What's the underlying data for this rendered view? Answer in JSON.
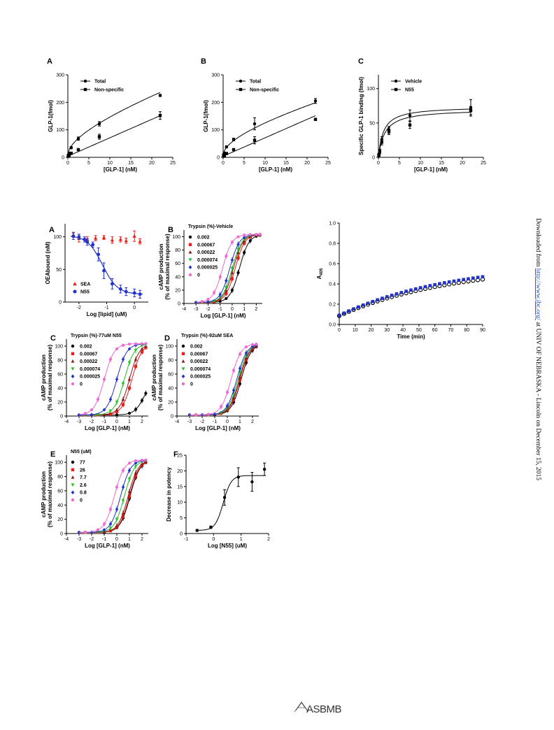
{
  "watermark": {
    "prefix": "Downloaded from ",
    "link": "http://www.jbc.org/",
    "suffix": " at UNIV OF NEBRASKA - Lincoln on December 15, 2015"
  },
  "footer": {
    "logo_text": "ASBMB"
  },
  "chart_data": [
    {
      "id": "top_A",
      "panel_label": "A",
      "type": "scatter",
      "xlabel": "[GLP-1] (nM)",
      "ylabel": "GLP-1(fmol)",
      "xlim": [
        0,
        25
      ],
      "ylim": [
        0,
        300
      ],
      "xticks": [
        0,
        5,
        10,
        15,
        20,
        25
      ],
      "yticks": [
        0,
        100,
        200,
        300
      ],
      "legend_position": "top-left",
      "series": [
        {
          "name": "Total",
          "marker": "circle",
          "color": "#000000",
          "x": [
            0.1,
            0.3,
            0.8,
            2.5,
            7.5,
            22
          ],
          "y": [
            8,
            14,
            35,
            68,
            122,
            225
          ],
          "err": [
            3,
            3,
            4,
            6,
            8,
            4
          ]
        },
        {
          "name": "Non-specific",
          "marker": "square",
          "color": "#000000",
          "x": [
            0.1,
            0.3,
            0.8,
            2.5,
            7.5,
            22
          ],
          "y": [
            4,
            7,
            15,
            28,
            75,
            152
          ],
          "err": [
            2,
            2,
            3,
            4,
            9,
            14
          ]
        }
      ]
    },
    {
      "id": "top_B",
      "panel_label": "B",
      "type": "scatter",
      "xlabel": "[GLP-1] (nM)",
      "ylabel": "GLP-1(fmol)",
      "xlim": [
        0,
        25
      ],
      "ylim": [
        0,
        300
      ],
      "xticks": [
        0,
        5,
        10,
        15,
        20,
        25
      ],
      "yticks": [
        0,
        100,
        200,
        300
      ],
      "legend_position": "top-left",
      "series": [
        {
          "name": "Total",
          "marker": "circle",
          "color": "#000000",
          "x": [
            0.1,
            0.3,
            0.8,
            2.5,
            7.5,
            22
          ],
          "y": [
            10,
            16,
            38,
            65,
            122,
            205
          ],
          "err": [
            3,
            3,
            4,
            5,
            22,
            9
          ]
        },
        {
          "name": "Non-specific",
          "marker": "square",
          "color": "#000000",
          "x": [
            0.1,
            0.3,
            0.8,
            2.5,
            7.5,
            22
          ],
          "y": [
            4,
            7,
            14,
            28,
            62,
            138
          ],
          "err": [
            2,
            2,
            3,
            4,
            13,
            4
          ]
        }
      ]
    },
    {
      "id": "top_C",
      "panel_label": "C",
      "type": "scatter",
      "xlabel": "[GLP-1] (nM)",
      "ylabel": "Specific GLP-1 binding (fmol)",
      "xlim": [
        0,
        25
      ],
      "ylim": [
        0,
        120
      ],
      "xticks": [
        0,
        5,
        10,
        15,
        20,
        25
      ],
      "yticks": [
        0,
        50,
        100
      ],
      "legend_position": "top-left",
      "series": [
        {
          "name": "Vehicle",
          "marker": "circle",
          "color": "#000000",
          "x": [
            0.1,
            0.3,
            0.8,
            2.5,
            7.5,
            22
          ],
          "y": [
            4,
            8,
            26,
            40,
            61,
            72
          ],
          "err": [
            2,
            3,
            4,
            5,
            8,
            12
          ]
        },
        {
          "name": "N55",
          "marker": "square",
          "color": "#000000",
          "x": [
            0.1,
            0.3,
            0.8,
            2.5,
            7.5,
            22
          ],
          "y": [
            3,
            9,
            22,
            38,
            47,
            68
          ],
          "err": [
            2,
            3,
            4,
            5,
            5,
            6
          ]
        }
      ]
    },
    {
      "id": "mid_A",
      "panel_label": "A",
      "type": "scatter",
      "xlabel": "Log [lipid] (uM)",
      "ylabel": "OEAbound (nM)",
      "xlim": [
        -2.5,
        0.5
      ],
      "ylim": [
        0,
        120
      ],
      "xticks": [
        -2,
        -1,
        0
      ],
      "yticks": [
        0,
        50,
        100
      ],
      "legend_position": "bottom-left",
      "series": [
        {
          "name": "SEA",
          "marker": "triangle",
          "color": "#e8201c",
          "x": [
            -2.2,
            -2.0,
            -1.7,
            -1.4,
            -1.1,
            -0.8,
            -0.5,
            -0.3,
            0.0,
            0.2
          ],
          "y": [
            103,
            98,
            96,
            98,
            99,
            95,
            96,
            94,
            101,
            93
          ],
          "err": [
            4,
            6,
            4,
            4,
            3,
            5,
            4,
            4,
            8,
            4
          ]
        },
        {
          "name": "N55",
          "marker": "circle",
          "color": "#2231c8",
          "x": [
            -2.2,
            -2.0,
            -1.8,
            -1.7,
            -1.5,
            -1.3,
            -1.1,
            -0.8,
            -0.5,
            -0.3,
            0.0,
            0.2
          ],
          "y": [
            101,
            100,
            96,
            92,
            88,
            73,
            48,
            28,
            20,
            16,
            14,
            12
          ],
          "err": [
            5,
            4,
            4,
            5,
            4,
            10,
            12,
            8,
            6,
            6,
            6,
            6
          ]
        }
      ]
    },
    {
      "id": "mid_B",
      "panel_label": "B",
      "panel_title": "Trypsin (%)-Vehicle",
      "type": "scatter",
      "xlabel": "Log [GLP-1] (nM)",
      "ylabel": "cAMP production\n(% of maximal response)",
      "xlim": [
        -4,
        2.5
      ],
      "ylim": [
        0,
        110
      ],
      "xticks": [
        -4,
        -3,
        -2,
        -1,
        0,
        1,
        2
      ],
      "yticks": [
        0,
        20,
        40,
        60,
        80,
        100
      ],
      "legend_position": "top-left",
      "series": [
        {
          "name": "0.002",
          "marker": "circle",
          "color": "#000000",
          "ec50": 0.6
        },
        {
          "name": "0.00067",
          "marker": "square",
          "color": "#e8201c",
          "ec50": 0.25
        },
        {
          "name": "0.00022",
          "marker": "triangle",
          "color": "#8b1a1a",
          "ec50": 0.1
        },
        {
          "name": "0.000074",
          "marker": "triangle-down",
          "color": "#22c022",
          "ec50": 0.0
        },
        {
          "name": "0.000025",
          "marker": "diamond",
          "color": "#2231c8",
          "ec50": -0.2
        },
        {
          "name": "0",
          "marker": "circle",
          "color": "#f06ad0",
          "ec50": -0.8
        }
      ]
    },
    {
      "id": "mid_right",
      "panel_label": "",
      "type": "scatter",
      "xlabel": "Time (min)",
      "ylabel": "A405",
      "xlim": [
        0,
        90
      ],
      "ylim": [
        0,
        1.0
      ],
      "xticks": [
        0,
        10,
        20,
        30,
        40,
        50,
        60,
        70,
        80,
        90
      ],
      "yticks": [
        0.0,
        0.2,
        0.4,
        0.6,
        0.8,
        1.0
      ],
      "series": [
        {
          "marker": "circle-open",
          "color": "#000000",
          "y0": 0.085,
          "y90": 0.445
        },
        {
          "marker": "square",
          "color": "#2231c8",
          "y0": 0.09,
          "y90": 0.47
        }
      ]
    },
    {
      "id": "low_C",
      "panel_label": "C",
      "panel_title": "Trypsin (%)-77uM N55",
      "type": "scatter",
      "xlabel": "Log [GLP-1] (nM)",
      "ylabel": "cAMP production\n(% of maximal response)",
      "xlim": [
        -4,
        2.5
      ],
      "ylim": [
        0,
        110
      ],
      "xticks": [
        -4,
        -3,
        -2,
        -1,
        0,
        1,
        2
      ],
      "yticks": [
        0,
        20,
        40,
        60,
        80,
        100
      ],
      "legend_position": "top-left",
      "series": [
        {
          "name": "0.002",
          "marker": "circle",
          "color": "#000000",
          "ec50": 2.2,
          "top": 55
        },
        {
          "name": "0.00067",
          "marker": "square",
          "color": "#e8201c",
          "ec50": 1.2
        },
        {
          "name": "0.00022",
          "marker": "triangle",
          "color": "#8b1a1a",
          "ec50": 1.0
        },
        {
          "name": "0.000074",
          "marker": "triangle-down",
          "color": "#22c022",
          "ec50": 0.6
        },
        {
          "name": "0.000025",
          "marker": "diamond",
          "color": "#2231c8",
          "ec50": 0.0
        },
        {
          "name": "0",
          "marker": "circle",
          "color": "#f06ad0",
          "ec50": -1.0
        }
      ]
    },
    {
      "id": "low_D",
      "panel_label": "D",
      "panel_title": "Trypsin (%)-92uM SEA",
      "type": "scatter",
      "xlabel": "Log [GLP-1] (nM)",
      "ylabel": "cAMP production\n(% of maximal response)",
      "xlim": [
        -4,
        2.5
      ],
      "ylim": [
        0,
        110
      ],
      "xticks": [
        -4,
        -3,
        -2,
        -1,
        0,
        1,
        2
      ],
      "yticks": [
        0,
        20,
        40,
        60,
        80,
        100
      ],
      "legend_position": "top-left",
      "series": [
        {
          "name": "0.002",
          "marker": "circle",
          "color": "#000000",
          "ec50": 1.1
        },
        {
          "name": "0.00067",
          "marker": "square",
          "color": "#e8201c",
          "ec50": 1.0
        },
        {
          "name": "0.00022",
          "marker": "triangle",
          "color": "#8b1a1a",
          "ec50": 0.95
        },
        {
          "name": "0.000074",
          "marker": "triangle-down",
          "color": "#22c022",
          "ec50": 0.85
        },
        {
          "name": "0.000025",
          "marker": "diamond",
          "color": "#2231c8",
          "ec50": 0.75
        },
        {
          "name": "0",
          "marker": "circle",
          "color": "#f06ad0",
          "ec50": 0.3
        }
      ]
    },
    {
      "id": "low_E",
      "panel_label": "E",
      "panel_title": "N55 (uM)",
      "type": "scatter",
      "xlabel": "Log [GLP-1] (nM)",
      "ylabel": "cAMP production\n(% of maximal response)",
      "xlim": [
        -4,
        2.5
      ],
      "ylim": [
        0,
        110
      ],
      "xticks": [
        -4,
        -3,
        -2,
        -1,
        0,
        1,
        2
      ],
      "yticks": [
        0,
        20,
        40,
        60,
        80,
        100
      ],
      "legend_position": "top-left",
      "series": [
        {
          "name": "77",
          "marker": "circle",
          "color": "#000000",
          "ec50": 1.05
        },
        {
          "name": "26",
          "marker": "square",
          "color": "#e8201c",
          "ec50": 1.0
        },
        {
          "name": "7.7",
          "marker": "triangle",
          "color": "#8b1a1a",
          "ec50": 0.9
        },
        {
          "name": "2.6",
          "marker": "triangle-down",
          "color": "#22c022",
          "ec50": 0.6
        },
        {
          "name": "0.8",
          "marker": "diamond",
          "color": "#2231c8",
          "ec50": 0.3
        },
        {
          "name": "0",
          "marker": "circle",
          "color": "#f06ad0",
          "ec50": -0.2
        }
      ]
    },
    {
      "id": "low_F",
      "panel_label": "F",
      "type": "scatter",
      "xlabel": "Log [N55] (uM)",
      "ylabel": "Decrease in potency",
      "xlim": [
        -1,
        2
      ],
      "ylim": [
        0,
        25
      ],
      "xticks": [
        -1,
        0,
        1,
        2
      ],
      "yticks": [
        0,
        5,
        10,
        15,
        20,
        25
      ],
      "series": [
        {
          "marker": "circle",
          "color": "#000000",
          "x": [
            -0.6,
            -0.1,
            0.4,
            0.9,
            1.4,
            1.85
          ],
          "y": [
            1,
            2,
            11.5,
            18,
            16.5,
            20.5
          ],
          "err": [
            0.3,
            0.4,
            2.5,
            3,
            3,
            2
          ]
        }
      ]
    }
  ]
}
